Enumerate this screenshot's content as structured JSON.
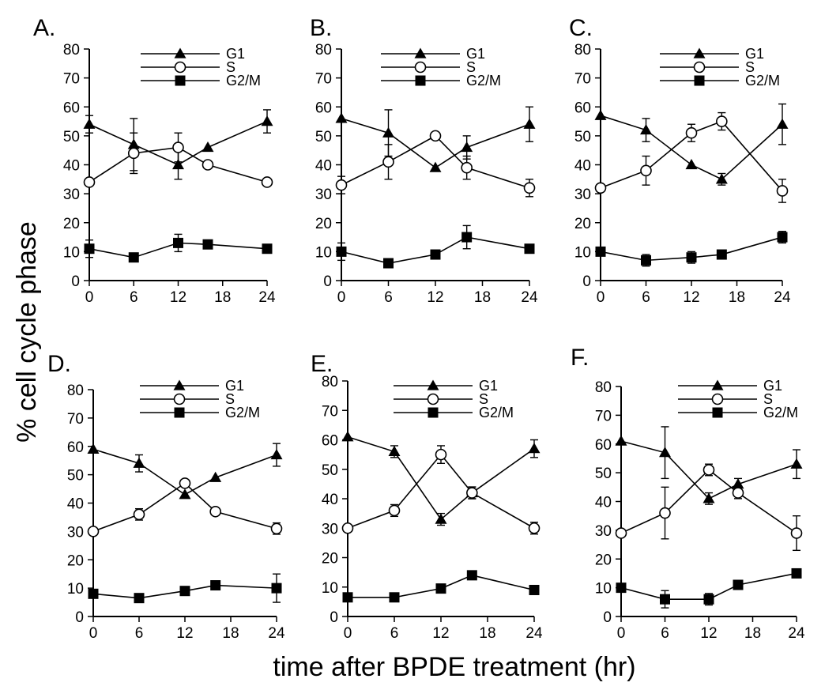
{
  "figure": {
    "ylabel": "% cell cycle phase",
    "xlabel": "time after BPDE treatment (hr)"
  },
  "legend_entries": [
    {
      "name": "G1",
      "marker": "triangle-filled"
    },
    {
      "name": "S",
      "marker": "circle-open"
    },
    {
      "name": "G2/M",
      "marker": "square-filled"
    }
  ],
  "colors": {
    "ink": "#000000",
    "background": "#ffffff"
  },
  "chart_data": [
    {
      "panel": "A.",
      "type": "line",
      "x": [
        0,
        6,
        12,
        16,
        24
      ],
      "xticks": [
        "0",
        "6",
        "12",
        "18",
        "24"
      ],
      "xlim": [
        0,
        24
      ],
      "yticks": [
        "0",
        "10",
        "20",
        "30",
        "40",
        "50",
        "60",
        "70",
        "80"
      ],
      "ylim": [
        0,
        80
      ],
      "legend_position": "top-right",
      "series": [
        {
          "name": "G1",
          "values": [
            54,
            47,
            40,
            46,
            55
          ],
          "errors": [
            3,
            9,
            5,
            0,
            4
          ]
        },
        {
          "name": "S",
          "values": [
            34,
            44,
            46,
            40,
            34
          ],
          "errors": [
            0,
            7,
            5,
            0,
            0
          ]
        },
        {
          "name": "G2/M",
          "values": [
            11,
            8,
            13,
            12.5,
            11
          ],
          "errors": [
            3,
            0,
            3,
            0,
            0
          ]
        }
      ]
    },
    {
      "panel": "B.",
      "type": "line",
      "x": [
        0,
        6,
        12,
        16,
        24
      ],
      "xticks": [
        "0",
        "6",
        "12",
        "18",
        "24"
      ],
      "xlim": [
        0,
        24
      ],
      "yticks": [
        "0",
        "10",
        "20",
        "30",
        "40",
        "50",
        "60",
        "70",
        "80"
      ],
      "ylim": [
        0,
        80
      ],
      "legend_position": "top-right",
      "series": [
        {
          "name": "G1",
          "values": [
            56,
            51,
            39,
            46,
            54
          ],
          "errors": [
            0,
            8,
            0,
            4,
            6
          ]
        },
        {
          "name": "S",
          "values": [
            33,
            41,
            50,
            39,
            32
          ],
          "errors": [
            3,
            6,
            0,
            4,
            3
          ]
        },
        {
          "name": "G2/M",
          "values": [
            10,
            6,
            9,
            15,
            11
          ],
          "errors": [
            3,
            0,
            0,
            4,
            0
          ]
        }
      ]
    },
    {
      "panel": "C.",
      "type": "line",
      "x": [
        0,
        6,
        12,
        16,
        24
      ],
      "xticks": [
        "0",
        "6",
        "12",
        "18",
        "24"
      ],
      "xlim": [
        0,
        24
      ],
      "yticks": [
        "0",
        "10",
        "20",
        "30",
        "40",
        "50",
        "60",
        "70",
        "80"
      ],
      "ylim": [
        0,
        80
      ],
      "legend_position": "top-right",
      "series": [
        {
          "name": "G1",
          "values": [
            57,
            52,
            40,
            35,
            54
          ],
          "errors": [
            0,
            4,
            0,
            2,
            7
          ]
        },
        {
          "name": "S",
          "values": [
            32,
            38,
            51,
            55,
            31
          ],
          "errors": [
            0,
            5,
            3,
            3,
            4
          ]
        },
        {
          "name": "G2/M",
          "values": [
            10,
            7,
            8,
            9,
            15
          ],
          "errors": [
            0,
            2,
            2,
            0,
            2
          ]
        }
      ]
    },
    {
      "panel": "D.",
      "type": "line",
      "x": [
        0,
        6,
        12,
        16,
        24
      ],
      "xticks": [
        "0",
        "6",
        "12",
        "18",
        "24"
      ],
      "xlim": [
        0,
        24
      ],
      "yticks": [
        "0",
        "10",
        "20",
        "30",
        "40",
        "50",
        "60",
        "70",
        "80"
      ],
      "ylim": [
        0,
        80
      ],
      "legend_position": "top-right",
      "series": [
        {
          "name": "G1",
          "values": [
            59,
            54,
            43,
            49,
            57
          ],
          "errors": [
            0,
            3,
            0,
            0,
            4
          ]
        },
        {
          "name": "S",
          "values": [
            30,
            36,
            47,
            37,
            31
          ],
          "errors": [
            0,
            2,
            0,
            0,
            2
          ]
        },
        {
          "name": "G2/M",
          "values": [
            8,
            6.5,
            9,
            11,
            10
          ],
          "errors": [
            0,
            0,
            0,
            0,
            5
          ]
        }
      ]
    },
    {
      "panel": "E.",
      "type": "line",
      "x": [
        0,
        6,
        12,
        16,
        24
      ],
      "xticks": [
        "0",
        "6",
        "12",
        "18",
        "24"
      ],
      "xlim": [
        0,
        24
      ],
      "yticks": [
        "0",
        "10",
        "20",
        "30",
        "40",
        "50",
        "60",
        "70",
        "80"
      ],
      "ylim": [
        0,
        80
      ],
      "legend_position": "top-right",
      "series": [
        {
          "name": "G1",
          "values": [
            61,
            56,
            33,
            42,
            57
          ],
          "errors": [
            0,
            2,
            2,
            2,
            3
          ]
        },
        {
          "name": "S",
          "values": [
            30,
            36,
            55,
            42,
            30
          ],
          "errors": [
            0,
            2,
            3,
            2,
            2
          ]
        },
        {
          "name": "G2/M",
          "values": [
            6.5,
            6.5,
            9.5,
            14,
            9
          ],
          "errors": [
            0,
            0,
            0,
            0,
            0
          ]
        }
      ]
    },
    {
      "panel": "F.",
      "type": "line",
      "x": [
        0,
        6,
        12,
        16,
        24
      ],
      "xticks": [
        "0",
        "6",
        "12",
        "18",
        "24"
      ],
      "xlim": [
        0,
        24
      ],
      "yticks": [
        "0",
        "10",
        "20",
        "30",
        "40",
        "50",
        "60",
        "70",
        "80"
      ],
      "ylim": [
        0,
        80
      ],
      "legend_position": "top-right",
      "series": [
        {
          "name": "G1",
          "values": [
            61,
            57,
            41,
            46,
            53
          ],
          "errors": [
            0,
            9,
            2,
            2,
            5
          ]
        },
        {
          "name": "S",
          "values": [
            29,
            36,
            51,
            43,
            29
          ],
          "errors": [
            0,
            9,
            2,
            2,
            6
          ]
        },
        {
          "name": "G2/M",
          "values": [
            10,
            6,
            6,
            11,
            15
          ],
          "errors": [
            0,
            3,
            2,
            0,
            0
          ]
        }
      ]
    }
  ]
}
